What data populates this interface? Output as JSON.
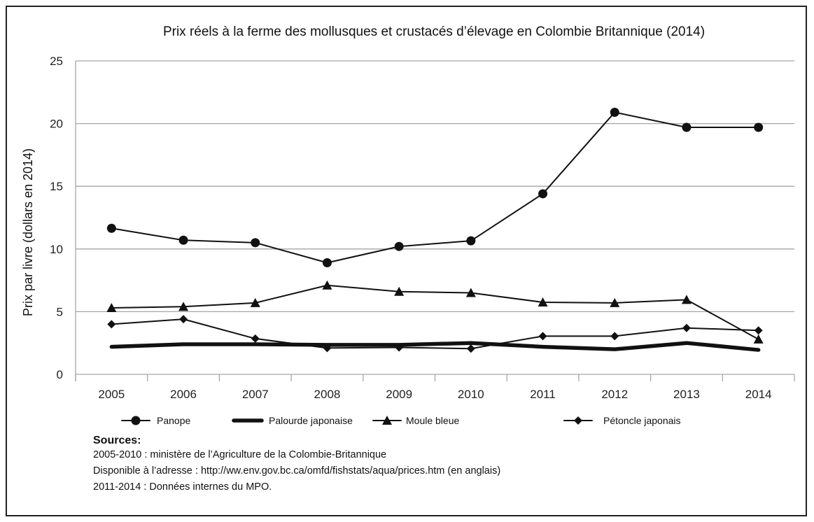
{
  "chart_data": {
    "type": "line",
    "title": "Prix réels à la ferme des mollusques et crustacés d’élevage en Colombie Britannique (2014)",
    "xlabel": "",
    "ylabel": "Prix par livre (dollars en 2014)",
    "categories": [
      "2005",
      "2006",
      "2007",
      "2008",
      "2009",
      "2010",
      "2011",
      "2012",
      "2013",
      "2014"
    ],
    "ylim": [
      0,
      25
    ],
    "yticks": [
      "0",
      "5",
      "10",
      "15",
      "20",
      "25"
    ],
    "grid": true,
    "legend_position": "bottom",
    "series": [
      {
        "name": "Panope",
        "marker": "circle",
        "line": "thin",
        "values": [
          11.65,
          10.7,
          10.5,
          8.9,
          10.2,
          10.65,
          14.4,
          20.9,
          19.7,
          19.7
        ]
      },
      {
        "name": "Palourde  japonaise",
        "marker": "none",
        "line": "thick",
        "values": [
          2.2,
          2.4,
          2.4,
          2.35,
          2.35,
          2.5,
          2.2,
          2.0,
          2.5,
          1.95
        ]
      },
      {
        "name": "Moule bleue",
        "marker": "triangle",
        "line": "thin",
        "values": [
          5.3,
          5.4,
          5.7,
          7.1,
          6.6,
          6.5,
          5.75,
          5.7,
          5.95,
          2.8
        ]
      },
      {
        "name": "Pétoncle japonais",
        "marker": "diamond",
        "line": "thin",
        "values": [
          4.0,
          4.4,
          2.85,
          2.1,
          2.15,
          2.05,
          3.05,
          3.05,
          3.7,
          3.5
        ]
      }
    ]
  },
  "sources": {
    "title": "Sources:",
    "lines": [
      "2005-2010 : ministère de l’Agriculture de la Colombie-Britannique",
      "Disponible à l’adresse : http://ww.env.gov.bc.ca/omfd/fishstats/aqua/prices.htm (en anglais)",
      "2011-2014 : Données internes du MPO."
    ]
  },
  "colors": {
    "line": "#111111",
    "grid": "#a6a6a6",
    "axis": "#a6a6a6"
  }
}
